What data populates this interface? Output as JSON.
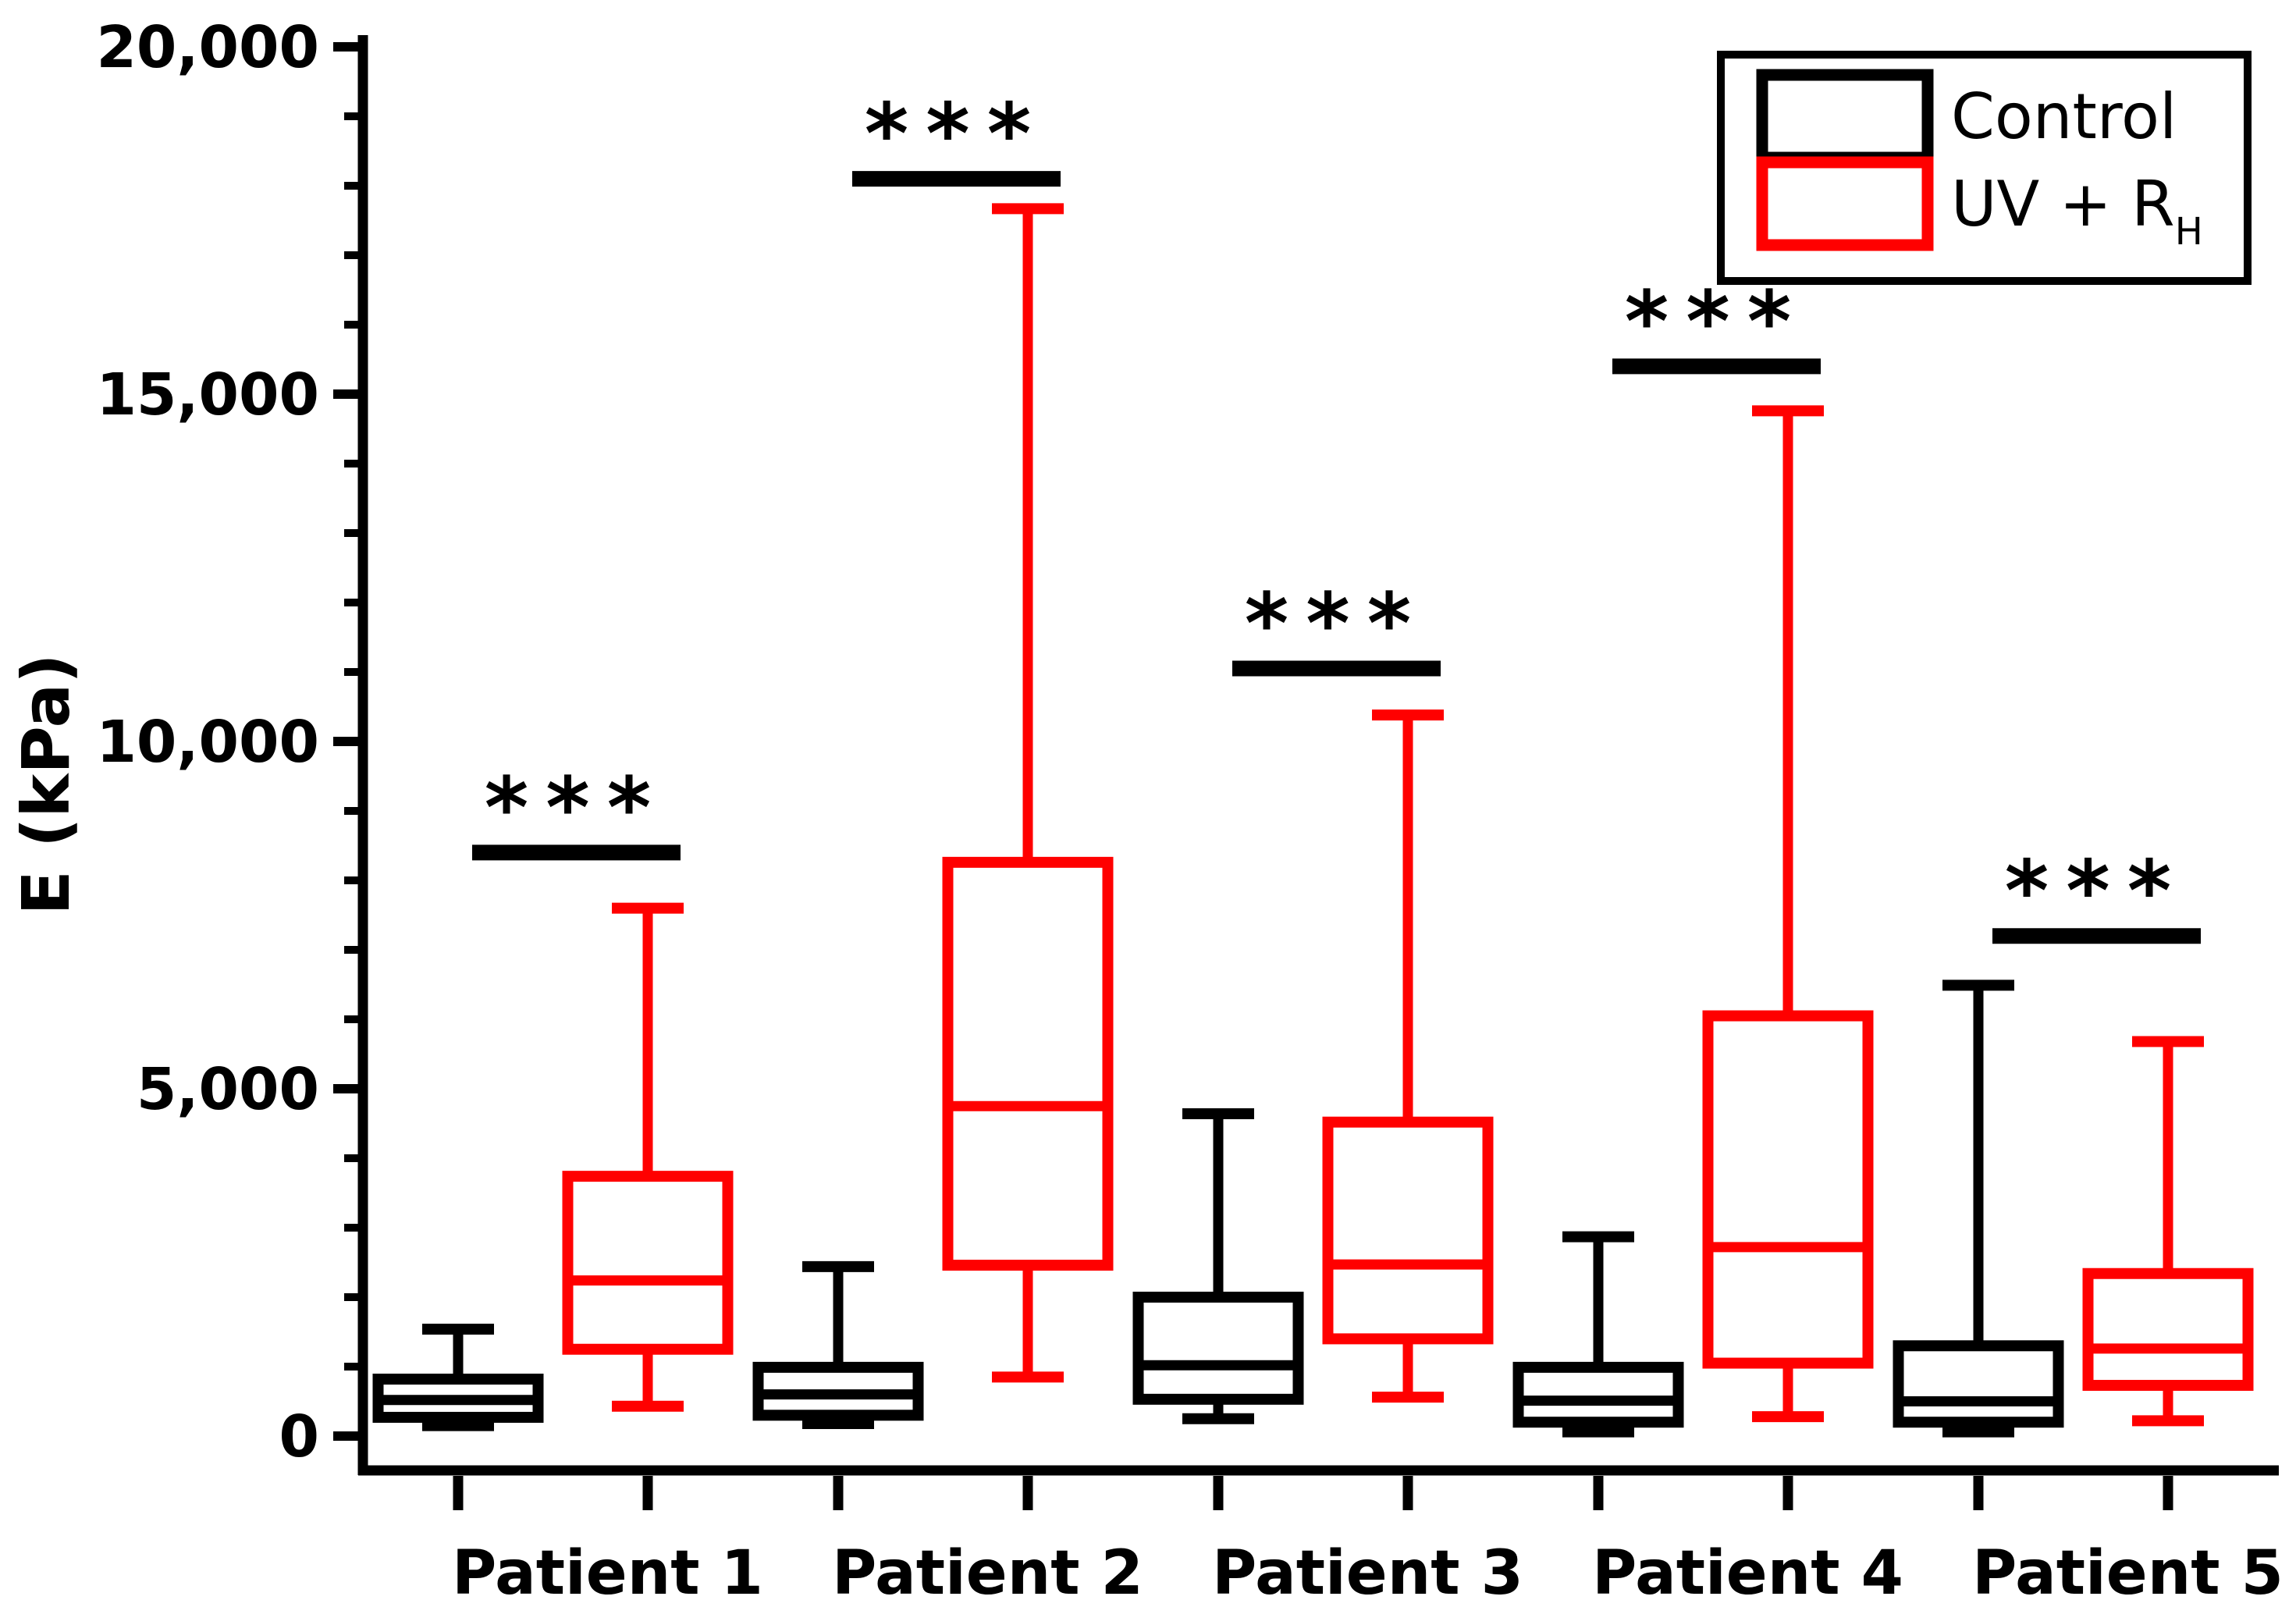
{
  "figure": {
    "background": "#ffffff",
    "axis_color": "#000000"
  },
  "chart_data": {
    "type": "boxplot",
    "title": "",
    "xlabel": "",
    "ylabel": "E (kPa)",
    "grid": false,
    "legend_position": "top-right",
    "y_axis": {
      "min": 0,
      "max": 20000,
      "minor_step": 1000,
      "major": [
        {
          "value": 0,
          "label": "0"
        },
        {
          "value": 5000,
          "label": "5,000"
        },
        {
          "value": 10000,
          "label": "10,000"
        },
        {
          "value": 15000,
          "label": "15,000"
        },
        {
          "value": 20000,
          "label": "20,000"
        }
      ]
    },
    "categories": [
      "Patient 1",
      "Patient 2",
      "Patient 3",
      "Patient 4",
      "Patient 5"
    ],
    "series": [
      {
        "name": "Control",
        "color": "#000000",
        "boxes": [
          {
            "min": 150,
            "q1": 270,
            "median": 520,
            "q3": 820,
            "max": 1540
          },
          {
            "min": 180,
            "q1": 300,
            "median": 600,
            "q3": 990,
            "max": 2440
          },
          {
            "min": 250,
            "q1": 530,
            "median": 1020,
            "q3": 2000,
            "max": 4640
          },
          {
            "min": 60,
            "q1": 200,
            "median": 510,
            "q3": 990,
            "max": 2870
          },
          {
            "min": 60,
            "q1": 200,
            "median": 500,
            "q3": 1300,
            "max": 6490
          }
        ]
      },
      {
        "name": "UV + R",
        "name_subscript": "H",
        "color": "#ff0000",
        "boxes": [
          {
            "min": 430,
            "q1": 1250,
            "median": 2240,
            "q3": 3740,
            "max": 7600
          },
          {
            "min": 850,
            "q1": 2460,
            "median": 4750,
            "q3": 8260,
            "max": 17670
          },
          {
            "min": 560,
            "q1": 1400,
            "median": 2470,
            "q3": 4520,
            "max": 10380
          },
          {
            "min": 280,
            "q1": 1050,
            "median": 2720,
            "q3": 6050,
            "max": 14760
          },
          {
            "min": 220,
            "q1": 730,
            "median": 1260,
            "q3": 2340,
            "max": 5680
          }
        ]
      }
    ],
    "significance": [
      {
        "category": "Patient 1",
        "label": "***",
        "bar_y": 8400
      },
      {
        "category": "Patient 2",
        "label": "***",
        "bar_y": 18100
      },
      {
        "category": "Patient 3",
        "label": "***",
        "bar_y": 11050
      },
      {
        "category": "Patient 4",
        "label": "***",
        "bar_y": 15400
      },
      {
        "category": "Patient 5",
        "label": "***",
        "bar_y": 7200
      }
    ],
    "legend": {
      "items": [
        {
          "label": "Control",
          "subscript": "",
          "color": "#000000"
        },
        {
          "label": "UV + R",
          "subscript": "H",
          "color": "#ff0000"
        }
      ]
    }
  }
}
